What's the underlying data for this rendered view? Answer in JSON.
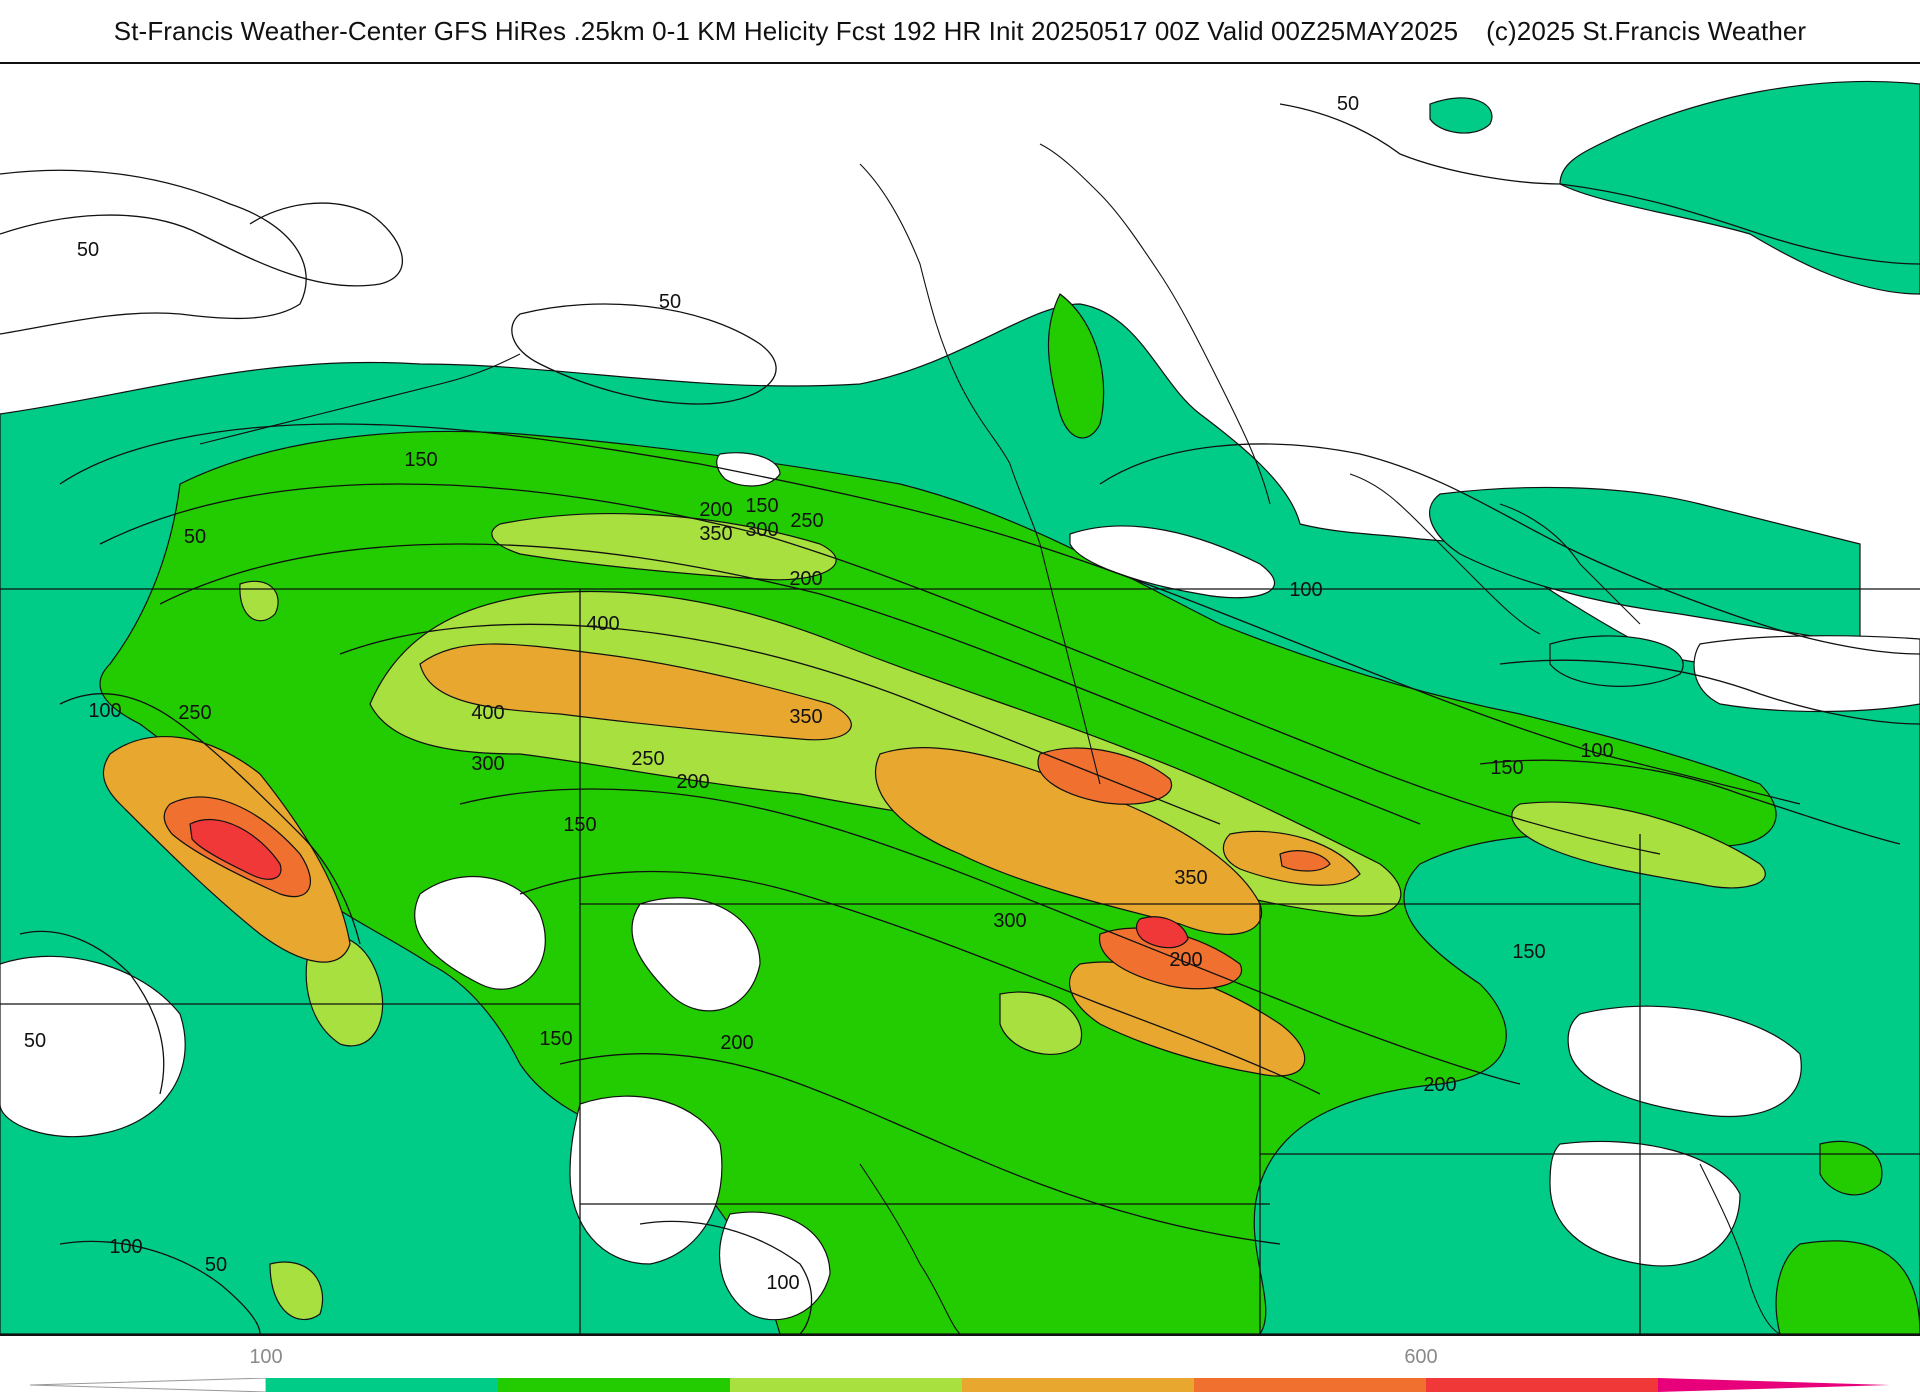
{
  "header": {
    "title": "St-Francis Weather-Center GFS HiRes .25km 0-1 KM Helicity Fcst 192 HR Init 20250517 00Z  Valid 00Z25MAY2025",
    "copyright": "(c)2025 St.Francis Weather"
  },
  "map": {
    "field": "0-1 KM Helicity",
    "contour_labels": [
      "50",
      "50",
      "50",
      "50",
      "150",
      "50",
      "200",
      "150",
      "350",
      "300",
      "250",
      "200",
      "100",
      "400",
      "400",
      "350",
      "300",
      "250",
      "200",
      "150",
      "100",
      "250",
      "150",
      "150",
      "350",
      "300",
      "200",
      "200",
      "150",
      "100",
      "50",
      "100",
      "100",
      "200"
    ]
  },
  "legend": {
    "tick_labels": [
      "100",
      "600"
    ],
    "color_bins": [
      {
        "range": "0-100",
        "color": "#ffffff"
      },
      {
        "range": "100-200",
        "color": "#00cc88"
      },
      {
        "range": "200-300",
        "color": "#22cc00"
      },
      {
        "range": "300-400",
        "color": "#a8e040"
      },
      {
        "range": "400-500",
        "color": "#e8a830"
      },
      {
        "range": "500-600",
        "color": "#f07030"
      },
      {
        "range": "600-700",
        "color": "#f03838"
      },
      {
        "range": "700+",
        "color": "#e8007a"
      }
    ]
  }
}
